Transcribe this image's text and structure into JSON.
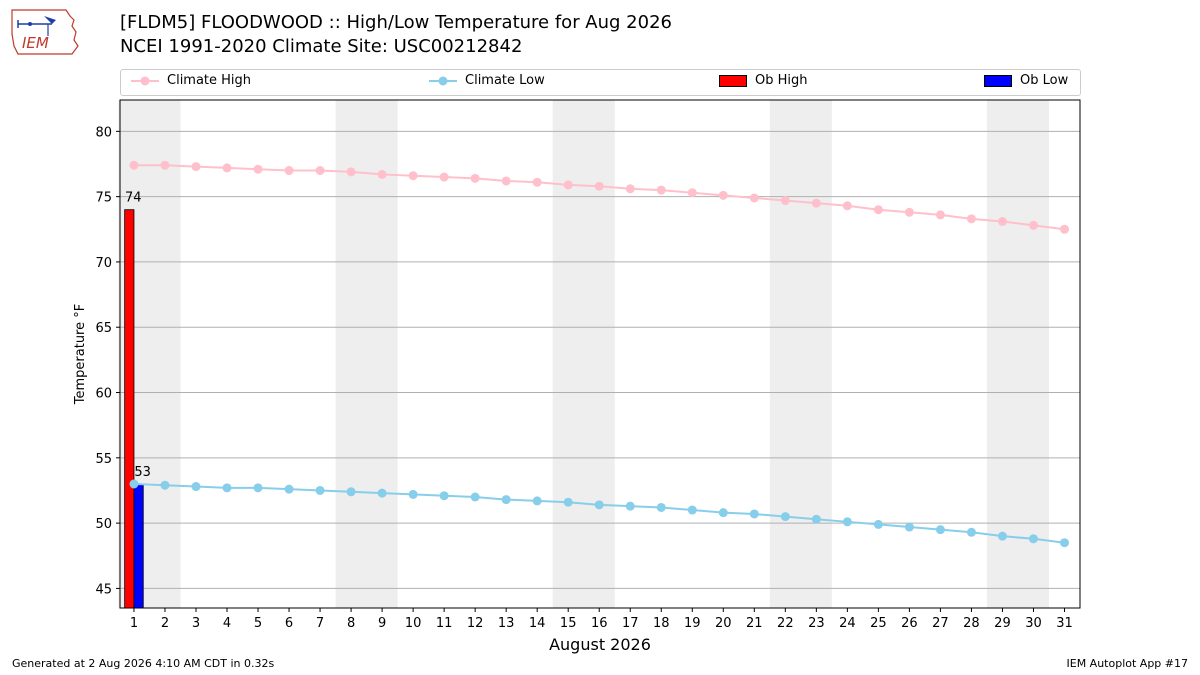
{
  "header": {
    "title_line1": "[FLDM5] FLOODWOOD :: High/Low Temperature for Aug 2026",
    "title_line2": "NCEI 1991-2020 Climate Site: USC00212842",
    "logo_text": "IEM"
  },
  "legend": {
    "items": [
      {
        "label": "Climate High",
        "color": "#ffc0cb",
        "kind": "line"
      },
      {
        "label": "Climate Low",
        "color": "#87ceeb",
        "kind": "line"
      },
      {
        "label": "Ob High",
        "color": "#ff0000",
        "kind": "bar"
      },
      {
        "label": "Ob Low",
        "color": "#0000ff",
        "kind": "bar"
      }
    ]
  },
  "footer": {
    "left": "Generated at 2 Aug 2026 4:10 AM CDT in 0.32s",
    "right": "IEM Autoplot App #17"
  },
  "chart_data": {
    "type": "bar",
    "xlabel": "August 2026",
    "ylabel": "Temperature °F",
    "ylim": [
      43.5,
      82.4
    ],
    "xlim": [
      0.55,
      31.5
    ],
    "yticks": [
      45,
      50,
      55,
      60,
      65,
      70,
      75,
      80
    ],
    "days": [
      1,
      2,
      3,
      4,
      5,
      6,
      7,
      8,
      9,
      10,
      11,
      12,
      13,
      14,
      15,
      16,
      17,
      18,
      19,
      20,
      21,
      22,
      23,
      24,
      25,
      26,
      27,
      28,
      29,
      30,
      31
    ],
    "weekend_bands": [
      [
        1,
        2
      ],
      [
        8,
        9
      ],
      [
        15,
        16
      ],
      [
        22,
        23
      ],
      [
        29,
        30
      ]
    ],
    "grid": "horizontal",
    "series": [
      {
        "name": "Climate High",
        "kind": "line",
        "color": "#ffc0cb",
        "values": [
          77.4,
          77.4,
          77.3,
          77.2,
          77.1,
          77.0,
          77.0,
          76.9,
          76.7,
          76.6,
          76.5,
          76.4,
          76.2,
          76.1,
          75.9,
          75.8,
          75.6,
          75.5,
          75.3,
          75.1,
          74.9,
          74.7,
          74.5,
          74.3,
          74.0,
          73.8,
          73.6,
          73.3,
          73.1,
          72.8,
          72.5
        ]
      },
      {
        "name": "Climate Low",
        "kind": "line",
        "color": "#87ceeb",
        "values": [
          53.0,
          52.9,
          52.8,
          52.7,
          52.7,
          52.6,
          52.5,
          52.4,
          52.3,
          52.2,
          52.1,
          52.0,
          51.8,
          51.7,
          51.6,
          51.4,
          51.3,
          51.2,
          51.0,
          50.8,
          50.7,
          50.5,
          50.3,
          50.1,
          49.9,
          49.7,
          49.5,
          49.3,
          49.0,
          48.8,
          48.5
        ]
      },
      {
        "name": "Ob High",
        "kind": "bar",
        "color": "#ff0000",
        "days": [
          1
        ],
        "values": [
          74
        ]
      },
      {
        "name": "Ob Low",
        "kind": "bar",
        "color": "#0000ff",
        "days": [
          1
        ],
        "values": [
          53
        ]
      }
    ],
    "data_labels": [
      {
        "day": 1,
        "series": "Ob High",
        "text": "74"
      },
      {
        "day": 1,
        "series": "Ob Low",
        "text": "53"
      }
    ]
  }
}
